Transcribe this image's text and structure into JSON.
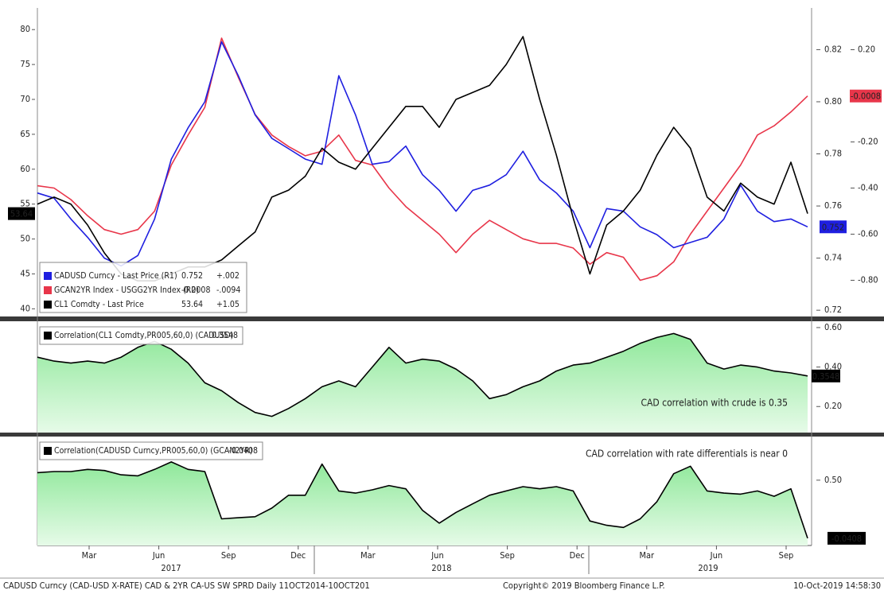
{
  "chart_data": [
    {
      "type": "line",
      "ylim": [
        38.9,
        83.1
      ],
      "yticks": [
        40,
        45,
        50,
        55,
        60,
        65,
        70,
        75,
        80
      ],
      "y2lim": [
        0.7176,
        0.836
      ],
      "y2ticks": [
        0.72,
        0.74,
        0.76,
        0.78,
        {
          "value": 0.8,
          "label": "0.80"
        },
        0.82
      ],
      "y3lim": [
        -0.957,
        0.381
      ],
      "y3ticks": [
        {
          "value": 0.2,
          "label": "0.20"
        },
        {
          "value": -0.2,
          "label": "-0.20"
        },
        {
          "value": -0.4,
          "label": "-0.40"
        },
        {
          "value": -0.6,
          "label": "-0.60"
        },
        {
          "value": -0.8,
          "label": "-0.80"
        }
      ],
      "series": [
        {
          "name": "CADUSD Curncy - Last Price (R1)",
          "color": "#1f1fe0",
          "axis": "y2",
          "legend_change": "+.002",
          "values": [
            0.765,
            0.763,
            0.755,
            0.748,
            0.74,
            0.737,
            0.741,
            0.755,
            0.778,
            0.79,
            0.8,
            0.823,
            0.81,
            0.795,
            0.786,
            0.782,
            0.778,
            0.776,
            0.81,
            0.795,
            0.776,
            0.777,
            0.783,
            0.772,
            0.766,
            0.758,
            0.766,
            0.768,
            0.772,
            0.781,
            0.77,
            0.765,
            0.758,
            0.744,
            0.759,
            0.758,
            0.752,
            0.749,
            0.744,
            0.746,
            0.748,
            0.755,
            0.768,
            0.758,
            0.754,
            0.755,
            0.752
          ]
        },
        {
          "name": "GCAN2YR Index - USGG2YR Index (R2)",
          "color": "#e8364a",
          "axis": "y3",
          "legend_change": "-.0094",
          "values": [
            -0.39,
            -0.4,
            -0.45,
            -0.52,
            -0.58,
            -0.6,
            -0.58,
            -0.5,
            -0.3,
            -0.17,
            -0.05,
            0.25,
            0.08,
            -0.08,
            -0.17,
            -0.22,
            -0.26,
            -0.24,
            -0.17,
            -0.28,
            -0.3,
            -0.4,
            -0.48,
            -0.54,
            -0.6,
            -0.68,
            -0.6,
            -0.54,
            -0.58,
            -0.62,
            -0.64,
            -0.64,
            -0.66,
            -0.73,
            -0.68,
            -0.7,
            -0.8,
            -0.78,
            -0.72,
            -0.6,
            -0.5,
            -0.4,
            -0.3,
            -0.17,
            -0.13,
            -0.07,
            -0.0008
          ]
        },
        {
          "name": "CL1 Comdty - Last Price",
          "color": "#000000",
          "axis": "y",
          "legend_change": "+1.05",
          "values": [
            55,
            56,
            55,
            52,
            48,
            45,
            44,
            44,
            45,
            46,
            46,
            47,
            49,
            51,
            56,
            57,
            59,
            63,
            61,
            60,
            63,
            66,
            69,
            69,
            66,
            70,
            71,
            72,
            75,
            79,
            70,
            62,
            53,
            45,
            52,
            54,
            57,
            62,
            66,
            63,
            56,
            54,
            58,
            56,
            55,
            61,
            53.64
          ]
        }
      ]
    },
    {
      "type": "area",
      "ylim": [
        0.068,
        0.632
      ],
      "yticks": [
        {
          "value": 0.6,
          "label": "0.60"
        },
        {
          "value": 0.4,
          "label": "0.40"
        },
        {
          "value": 0.2,
          "label": "0.20"
        }
      ],
      "annotation": "CAD correlation with crude is 0.35",
      "series": [
        {
          "name": "Correlation(CL1 Comdty,PR005,60,0) (CADUSD)",
          "color": "#000000",
          "fill": "#7ee08a",
          "values": [
            0.45,
            0.43,
            0.42,
            0.43,
            0.42,
            0.45,
            0.5,
            0.53,
            0.49,
            0.42,
            0.32,
            0.28,
            0.22,
            0.17,
            0.15,
            0.19,
            0.24,
            0.3,
            0.33,
            0.3,
            0.4,
            0.5,
            0.42,
            0.44,
            0.43,
            0.39,
            0.33,
            0.24,
            0.26,
            0.3,
            0.33,
            0.38,
            0.41,
            0.42,
            0.45,
            0.48,
            0.52,
            0.55,
            0.57,
            0.54,
            0.42,
            0.39,
            0.41,
            0.4,
            0.38,
            0.37,
            0.3548
          ]
        }
      ]
    },
    {
      "type": "area",
      "ylim": [
        -0.108,
        0.906
      ],
      "yticks": [
        {
          "value": 0.5,
          "label": "0.50"
        }
      ],
      "annotation": "CAD correlation with rate differentials is near 0",
      "series": [
        {
          "name": "Correlation(CADUSD Curncy,PR005,60,0) (GCAN2YR)",
          "color": "#000000",
          "fill": "#7ee08a",
          "values": [
            0.57,
            0.58,
            0.58,
            0.6,
            0.59,
            0.55,
            0.54,
            0.6,
            0.67,
            0.6,
            0.58,
            0.14,
            0.15,
            0.16,
            0.24,
            0.36,
            0.36,
            0.65,
            0.4,
            0.38,
            0.41,
            0.45,
            0.42,
            0.22,
            0.1,
            0.2,
            0.28,
            0.36,
            0.4,
            0.44,
            0.42,
            0.44,
            0.4,
            0.12,
            0.08,
            0.06,
            0.14,
            0.3,
            0.56,
            0.63,
            0.4,
            0.38,
            0.37,
            0.4,
            0.35,
            0.42,
            -0.0408
          ]
        }
      ]
    }
  ],
  "x_axis": {
    "months": [
      "Mar",
      "Jun",
      "Sep",
      "Dec",
      "Mar",
      "Jun",
      "Sep",
      "Dec",
      "Mar",
      "Jun",
      "Sep"
    ],
    "years": [
      "2017",
      "2018",
      "2019"
    ]
  },
  "footer": {
    "description": "CADUSD Curncy (CAD-USD X-RATE) CAD & 2YR CA-US SW SPRD  Daily 11OCT2014-10OCT201",
    "copyright": "Copyright© 2019 Bloomberg Finance L.P.",
    "timestamp": "10-Oct-2019 14:58:30"
  }
}
